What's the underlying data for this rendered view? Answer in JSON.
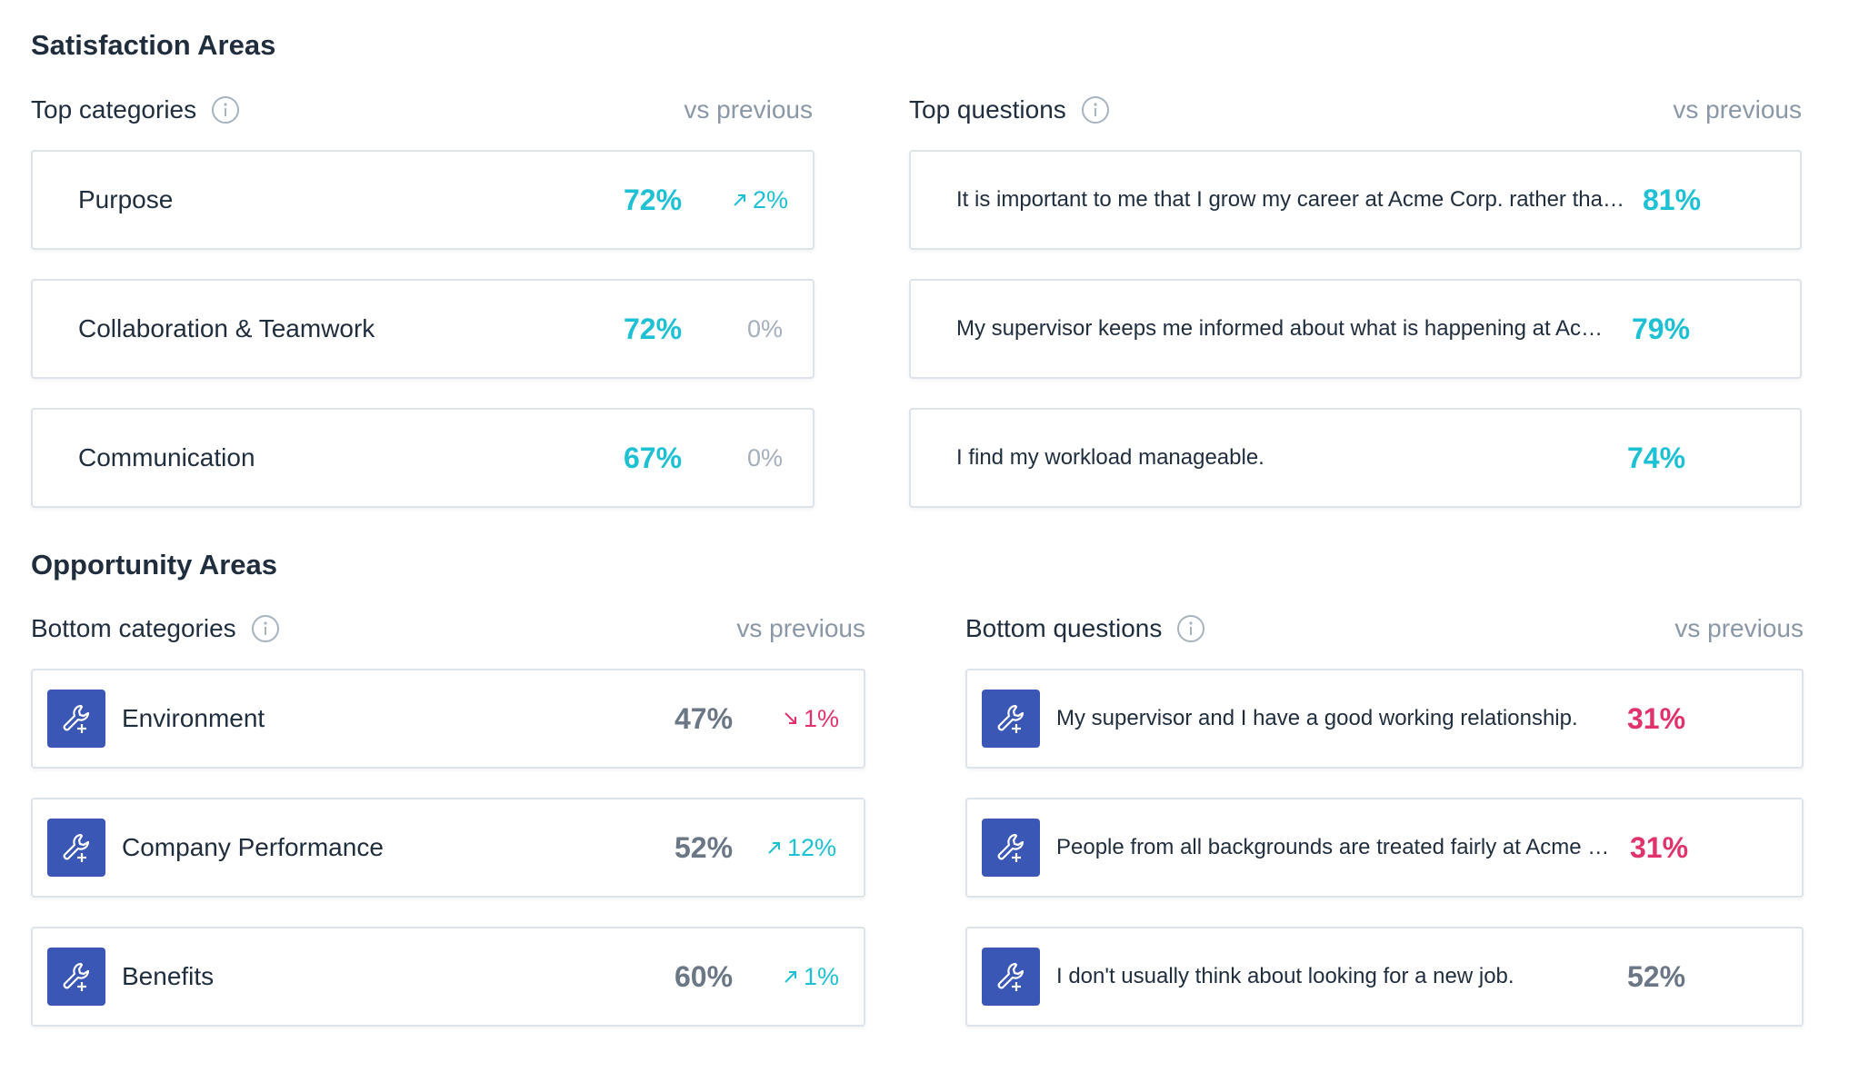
{
  "satisfaction": {
    "title": "Satisfaction Areas",
    "top_categories": {
      "title": "Top categories",
      "vs_label": "vs previous",
      "items": [
        {
          "label": "Purpose",
          "pct": "72%",
          "delta": "2%",
          "trend": "up"
        },
        {
          "label": "Collaboration & Teamwork",
          "pct": "72%",
          "delta": "0%",
          "trend": "flat"
        },
        {
          "label": "Communication",
          "pct": "67%",
          "delta": "0%",
          "trend": "flat"
        }
      ]
    },
    "top_questions": {
      "title": "Top questions",
      "vs_label": "vs previous",
      "items": [
        {
          "label": "It is important to me that I grow my career at Acme Corp. rather than ...",
          "pct": "81%"
        },
        {
          "label": "My supervisor keeps me informed about what is happening at Acme ...",
          "pct": "79%"
        },
        {
          "label": "I find my workload manageable.",
          "pct": "74%"
        }
      ]
    }
  },
  "opportunity": {
    "title": "Opportunity Areas",
    "bottom_categories": {
      "title": "Bottom categories",
      "vs_label": "vs previous",
      "items": [
        {
          "label": "Environment",
          "pct": "47%",
          "delta": "1%",
          "trend": "down"
        },
        {
          "label": "Company Performance",
          "pct": "52%",
          "delta": "12%",
          "trend": "up"
        },
        {
          "label": "Benefits",
          "pct": "60%",
          "delta": "1%",
          "trend": "up"
        }
      ]
    },
    "bottom_questions": {
      "title": "Bottom questions",
      "vs_label": "vs previous",
      "items": [
        {
          "label": "My supervisor and I have a good working relationship.",
          "pct": "31%",
          "tone": "red"
        },
        {
          "label": "People from all backgrounds are treated fairly at Acme C...",
          "pct": "31%",
          "tone": "red"
        },
        {
          "label": "I don't usually think about looking for a new job.",
          "pct": "52%",
          "tone": "gray"
        }
      ]
    }
  },
  "colors": {
    "teal": "#1ec0d3",
    "red": "#e0336b",
    "gray": "#6b7785",
    "icon_bg": "#3a57b5"
  },
  "icons": {
    "info": "info-circle-icon",
    "wrench": "wrench-plus-icon",
    "arrow_up": "arrow-up-right-icon",
    "arrow_down": "arrow-down-right-icon"
  }
}
